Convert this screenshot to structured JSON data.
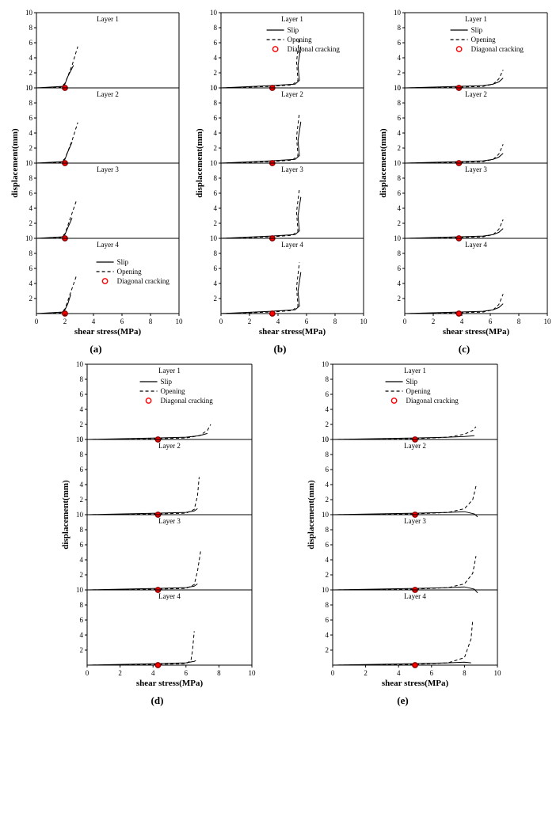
{
  "global": {
    "x_label": "shear stress(MPa)",
    "y_label": "displacement(mm)",
    "xlim": [
      0,
      10
    ],
    "ylim": [
      0,
      10
    ],
    "xtick_step": 2,
    "ytick_step": 2,
    "layer_labels": [
      "Layer 1",
      "Layer 2",
      "Layer 3",
      "Layer 4"
    ],
    "legend": {
      "slip": "Slip",
      "opening": "Opening",
      "diag": "Diagonal cracking"
    },
    "colors": {
      "axis": "#000000",
      "tick": "#000000",
      "line": "#000000",
      "marker_fill": "#ff0000",
      "marker_stroke": "#8b0000",
      "divider": "#808080",
      "bg": "#ffffff"
    },
    "font": {
      "axis_label_pt": 11,
      "tick_pt": 9,
      "layer_pt": 9,
      "legend_pt": 9,
      "caption_pt": 13
    },
    "line_width_solid": 1.0,
    "line_width_dash": 1.0,
    "dash_pattern": "4,3",
    "marker_radius": 3.2,
    "marker_stroke_w": 1.4
  },
  "panels": [
    {
      "id": "a",
      "caption": "(a)",
      "legend_pos": "bottom",
      "diag_x": 2.0,
      "layers": [
        {
          "slip": [
            [
              0,
              0
            ],
            [
              1.8,
              0.2
            ],
            [
              2.0,
              0.5
            ],
            [
              2.2,
              1.5
            ],
            [
              2.6,
              3.0
            ]
          ],
          "open": [
            [
              0,
              0
            ],
            [
              1.7,
              0.1
            ],
            [
              2.0,
              0.6
            ],
            [
              2.5,
              3.0
            ],
            [
              2.9,
              5.5
            ]
          ]
        },
        {
          "slip": [
            [
              0,
              0
            ],
            [
              1.8,
              0.2
            ],
            [
              2.0,
              0.5
            ],
            [
              2.2,
              1.5
            ],
            [
              2.5,
              2.8
            ]
          ],
          "open": [
            [
              0,
              0
            ],
            [
              1.7,
              0.1
            ],
            [
              2.0,
              0.6
            ],
            [
              2.5,
              3.0
            ],
            [
              2.9,
              5.4
            ]
          ]
        },
        {
          "slip": [
            [
              0,
              0
            ],
            [
              1.8,
              0.2
            ],
            [
              2.0,
              0.5
            ],
            [
              2.2,
              1.4
            ],
            [
              2.5,
              2.7
            ]
          ],
          "open": [
            [
              0,
              0
            ],
            [
              1.7,
              0.1
            ],
            [
              2.0,
              0.6
            ],
            [
              2.4,
              2.8
            ],
            [
              2.8,
              5.0
            ]
          ]
        },
        {
          "slip": [
            [
              0,
              0
            ],
            [
              1.8,
              0.2
            ],
            [
              2.0,
              0.5
            ],
            [
              2.2,
              1.3
            ],
            [
              2.4,
              2.5
            ]
          ],
          "open": [
            [
              0,
              0
            ],
            [
              1.7,
              0.1
            ],
            [
              2.0,
              0.6
            ],
            [
              2.4,
              2.8
            ],
            [
              2.8,
              5.0
            ]
          ]
        }
      ]
    },
    {
      "id": "b",
      "caption": "(b)",
      "legend_pos": "top",
      "diag_x": 3.6,
      "layers": [
        {
          "slip": [
            [
              0,
              0
            ],
            [
              3.5,
              0.3
            ],
            [
              5.2,
              0.5
            ],
            [
              5.5,
              1.0
            ],
            [
              5.4,
              3.0
            ],
            [
              5.6,
              5.5
            ]
          ],
          "open": [
            [
              0,
              0
            ],
            [
              3.5,
              0.2
            ],
            [
              5.0,
              0.4
            ],
            [
              5.4,
              1.0
            ],
            [
              5.3,
              3.5
            ],
            [
              5.5,
              6.7
            ]
          ]
        },
        {
          "slip": [
            [
              0,
              0
            ],
            [
              3.5,
              0.3
            ],
            [
              5.2,
              0.5
            ],
            [
              5.5,
              1.0
            ],
            [
              5.4,
              3.0
            ],
            [
              5.6,
              5.5
            ]
          ],
          "open": [
            [
              0,
              0
            ],
            [
              3.5,
              0.2
            ],
            [
              5.0,
              0.4
            ],
            [
              5.4,
              1.0
            ],
            [
              5.3,
              3.5
            ],
            [
              5.5,
              6.7
            ]
          ]
        },
        {
          "slip": [
            [
              0,
              0
            ],
            [
              3.5,
              0.3
            ],
            [
              5.2,
              0.5
            ],
            [
              5.5,
              1.0
            ],
            [
              5.4,
              3.0
            ],
            [
              5.6,
              5.5
            ]
          ],
          "open": [
            [
              0,
              0
            ],
            [
              3.5,
              0.2
            ],
            [
              5.0,
              0.4
            ],
            [
              5.4,
              1.0
            ],
            [
              5.3,
              3.5
            ],
            [
              5.5,
              6.6
            ]
          ]
        },
        {
          "slip": [
            [
              0,
              0
            ],
            [
              3.5,
              0.3
            ],
            [
              5.2,
              0.5
            ],
            [
              5.5,
              1.0
            ],
            [
              5.4,
              3.0
            ],
            [
              5.6,
              5.5
            ]
          ],
          "open": [
            [
              0,
              0
            ],
            [
              3.5,
              0.2
            ],
            [
              5.0,
              0.4
            ],
            [
              5.4,
              1.0
            ],
            [
              5.3,
              3.5
            ],
            [
              5.5,
              6.8
            ]
          ]
        }
      ]
    },
    {
      "id": "c",
      "caption": "(c)",
      "legend_pos": "top",
      "diag_x": 3.8,
      "layers": [
        {
          "slip": [
            [
              0,
              0
            ],
            [
              3.7,
              0.2
            ],
            [
              5.5,
              0.3
            ],
            [
              6.2,
              0.5
            ],
            [
              6.6,
              0.8
            ],
            [
              6.9,
              1.3
            ]
          ],
          "open": [
            [
              0,
              0
            ],
            [
              3.7,
              0.1
            ],
            [
              5.5,
              0.2
            ],
            [
              6.2,
              0.5
            ],
            [
              6.6,
              1.2
            ],
            [
              6.9,
              2.4
            ]
          ]
        },
        {
          "slip": [
            [
              0,
              0
            ],
            [
              3.7,
              0.2
            ],
            [
              5.5,
              0.3
            ],
            [
              6.2,
              0.5
            ],
            [
              6.6,
              0.8
            ],
            [
              6.9,
              1.3
            ]
          ],
          "open": [
            [
              0,
              0
            ],
            [
              3.7,
              0.1
            ],
            [
              5.5,
              0.2
            ],
            [
              6.2,
              0.5
            ],
            [
              6.6,
              1.2
            ],
            [
              6.9,
              2.5
            ]
          ]
        },
        {
          "slip": [
            [
              0,
              0
            ],
            [
              3.7,
              0.2
            ],
            [
              5.5,
              0.3
            ],
            [
              6.2,
              0.5
            ],
            [
              6.6,
              0.8
            ],
            [
              6.9,
              1.3
            ]
          ],
          "open": [
            [
              0,
              0
            ],
            [
              3.7,
              0.1
            ],
            [
              5.5,
              0.2
            ],
            [
              6.2,
              0.5
            ],
            [
              6.6,
              1.2
            ],
            [
              6.9,
              2.5
            ]
          ]
        },
        {
          "slip": [
            [
              0,
              0
            ],
            [
              3.7,
              0.2
            ],
            [
              5.5,
              0.3
            ],
            [
              6.2,
              0.5
            ],
            [
              6.6,
              0.8
            ],
            [
              6.9,
              1.3
            ]
          ],
          "open": [
            [
              0,
              0
            ],
            [
              3.7,
              0.1
            ],
            [
              5.5,
              0.2
            ],
            [
              6.2,
              0.5
            ],
            [
              6.6,
              1.2
            ],
            [
              6.9,
              2.6
            ]
          ]
        }
      ]
    },
    {
      "id": "d",
      "caption": "(d)",
      "legend_pos": "top",
      "diag_x": 4.3,
      "layers": [
        {
          "slip": [
            [
              0,
              0
            ],
            [
              4.2,
              0.2
            ],
            [
              6.0,
              0.3
            ],
            [
              6.8,
              0.5
            ],
            [
              7.3,
              0.8
            ]
          ],
          "open": [
            [
              0,
              0
            ],
            [
              4.2,
              0.1
            ],
            [
              6.0,
              0.2
            ],
            [
              6.8,
              0.5
            ],
            [
              7.3,
              1.2
            ],
            [
              7.5,
              2.0
            ]
          ]
        },
        {
          "slip": [
            [
              0,
              0
            ],
            [
              4.2,
              0.2
            ],
            [
              6.0,
              0.3
            ],
            [
              6.5,
              0.5
            ],
            [
              6.7,
              0.8
            ]
          ],
          "open": [
            [
              0,
              0
            ],
            [
              4.2,
              0.1
            ],
            [
              6.0,
              0.2
            ],
            [
              6.5,
              0.7
            ],
            [
              6.7,
              2.5
            ],
            [
              6.8,
              5.0
            ]
          ]
        },
        {
          "slip": [
            [
              0,
              0
            ],
            [
              4.2,
              0.2
            ],
            [
              6.0,
              0.3
            ],
            [
              6.5,
              0.5
            ],
            [
              6.7,
              0.8
            ]
          ],
          "open": [
            [
              0,
              0
            ],
            [
              4.2,
              0.1
            ],
            [
              6.0,
              0.2
            ],
            [
              6.5,
              0.7
            ],
            [
              6.7,
              2.5
            ],
            [
              6.9,
              5.3
            ]
          ]
        },
        {
          "slip": [
            [
              0,
              0
            ],
            [
              4.2,
              0.2
            ],
            [
              6.0,
              0.3
            ],
            [
              6.5,
              0.5
            ],
            [
              6.6,
              0.6
            ]
          ],
          "open": [
            [
              0,
              0
            ],
            [
              4.2,
              0.1
            ],
            [
              6.0,
              0.2
            ],
            [
              6.3,
              0.6
            ],
            [
              6.4,
              2.0
            ],
            [
              6.5,
              4.5
            ]
          ]
        }
      ]
    },
    {
      "id": "e",
      "caption": "(e)",
      "legend_pos": "top",
      "diag_x": 5.0,
      "layers": [
        {
          "slip": [
            [
              0,
              0
            ],
            [
              5.0,
              0.2
            ],
            [
              7.0,
              0.3
            ],
            [
              8.0,
              0.4
            ],
            [
              8.6,
              0.5
            ]
          ],
          "open": [
            [
              0,
              0
            ],
            [
              5.0,
              0.1
            ],
            [
              7.0,
              0.3
            ],
            [
              8.0,
              0.7
            ],
            [
              8.5,
              1.2
            ],
            [
              8.7,
              1.7
            ]
          ]
        },
        {
          "slip": [
            [
              0,
              0
            ],
            [
              5.0,
              0.2
            ],
            [
              7.0,
              0.3
            ],
            [
              8.0,
              0.4
            ],
            [
              8.6,
              0.1
            ],
            [
              8.8,
              -0.3
            ]
          ],
          "open": [
            [
              0,
              0
            ],
            [
              5.0,
              0.1
            ],
            [
              7.0,
              0.3
            ],
            [
              8.0,
              0.8
            ],
            [
              8.5,
              2.0
            ],
            [
              8.7,
              3.8
            ]
          ]
        },
        {
          "slip": [
            [
              0,
              0
            ],
            [
              5.0,
              0.2
            ],
            [
              7.0,
              0.3
            ],
            [
              8.0,
              0.4
            ],
            [
              8.6,
              0.1
            ],
            [
              8.8,
              -0.4
            ]
          ],
          "open": [
            [
              0,
              0
            ],
            [
              5.0,
              0.1
            ],
            [
              7.0,
              0.3
            ],
            [
              8.0,
              0.8
            ],
            [
              8.5,
              2.2
            ],
            [
              8.7,
              4.5
            ]
          ]
        },
        {
          "slip": [
            [
              0,
              0
            ],
            [
              5.0,
              0.2
            ],
            [
              7.0,
              0.3
            ],
            [
              8.0,
              0.4
            ],
            [
              8.4,
              0.3
            ]
          ],
          "open": [
            [
              0,
              0
            ],
            [
              5.0,
              0.1
            ],
            [
              7.0,
              0.3
            ],
            [
              8.0,
              1.0
            ],
            [
              8.4,
              3.5
            ],
            [
              8.5,
              6.0
            ]
          ]
        }
      ]
    }
  ]
}
